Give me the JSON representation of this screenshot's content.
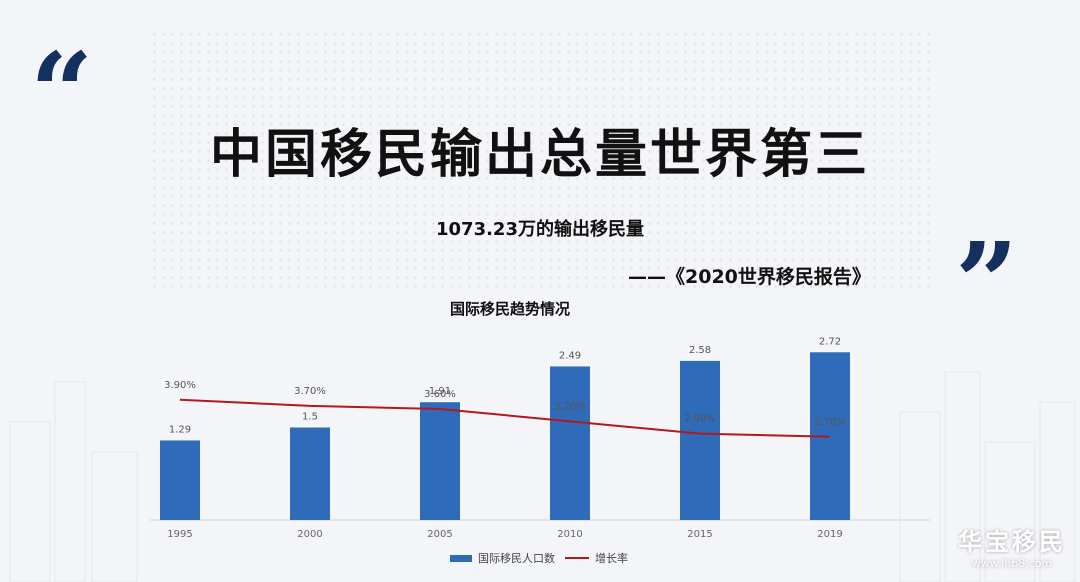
{
  "header": {
    "title": "中国移民输出总量世界第三",
    "subtitle": "1073.23万的输出移民量",
    "source": "——《2020世界移民报告》",
    "open_quote": "“",
    "close_quote": "”"
  },
  "chart_data": {
    "type": "bar",
    "title": "国际移民趋势情况",
    "categories": [
      "1995",
      "2000",
      "2005",
      "2010",
      "2015",
      "2019"
    ],
    "series": [
      {
        "name": "国际移民人口数",
        "kind": "bar",
        "values": [
          1.29,
          1.5,
          1.91,
          2.49,
          2.58,
          2.72
        ],
        "labels": [
          "1.29",
          "1.5",
          "1.91",
          "2.49",
          "2.58",
          "2.72"
        ]
      },
      {
        "name": "增长率",
        "kind": "line",
        "values": [
          3.9,
          3.7,
          3.6,
          3.2,
          2.8,
          2.7
        ],
        "labels": [
          "3.90%",
          "3.70%",
          "3.60%",
          "3.20%",
          "2.80%",
          "2.70%"
        ]
      }
    ],
    "bar_ylim": [
      0,
      3
    ],
    "line_ylim": [
      0,
      6
    ],
    "grid": false,
    "legend_position": "bottom"
  },
  "colors": {
    "bar": "#2f6bb8",
    "line": "#b4181c",
    "quote": "#14305f"
  },
  "watermark": {
    "main": "华宝移民",
    "url": "www.lhb8.com"
  }
}
